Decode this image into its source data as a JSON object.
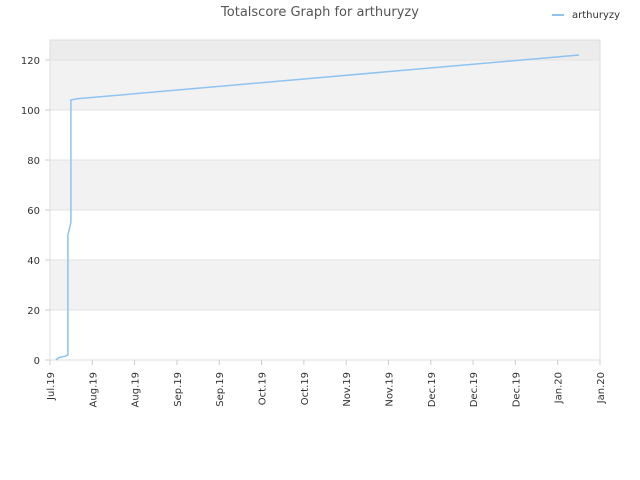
{
  "chart_data": {
    "type": "line",
    "title": "Totalscore Graph for arthuryzy",
    "xlabel": "",
    "ylabel": "",
    "x_range": [
      "2019-07-01",
      "2020-01-01"
    ],
    "x_tick_labels": [
      "Jul.19",
      "Aug.19",
      "Aug.19",
      "Sep.19",
      "Sep.19",
      "Oct.19",
      "Oct.19",
      "Nov.19",
      "Nov.19",
      "Dec.19",
      "Dec.19",
      "Dec.19",
      "Jan.20",
      "Jan.20"
    ],
    "ylim": [
      0,
      128
    ],
    "y_ticks": [
      0,
      20,
      40,
      60,
      80,
      100,
      120
    ],
    "grid": true,
    "banded_background": true,
    "legend": {
      "position": "top-right",
      "entries": [
        "arthuryzy"
      ]
    },
    "series": [
      {
        "name": "arthuryzy",
        "color": "#8fc4f0",
        "points": [
          {
            "x": "2019-07-03",
            "y": 0
          },
          {
            "x": "2019-07-04",
            "y": 1
          },
          {
            "x": "2019-07-06",
            "y": 1.5
          },
          {
            "x": "2019-07-07",
            "y": 2
          },
          {
            "x": "2019-07-07",
            "y": 50
          },
          {
            "x": "2019-07-08",
            "y": 55
          },
          {
            "x": "2019-07-08",
            "y": 60
          },
          {
            "x": "2019-07-08",
            "y": 104
          },
          {
            "x": "2019-07-10",
            "y": 104.5
          },
          {
            "x": "2019-12-25",
            "y": 122
          }
        ]
      }
    ]
  }
}
